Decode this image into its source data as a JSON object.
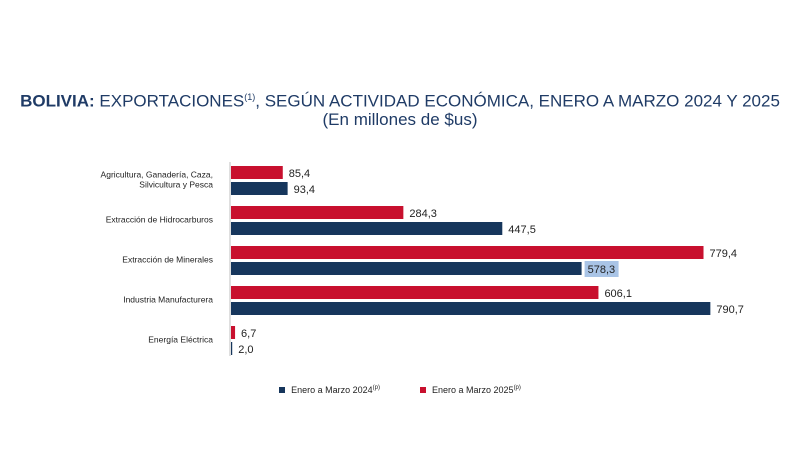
{
  "header": {
    "title_bold": "BOLIVIA:",
    "title_main": " EXPORTACIONES",
    "title_sup": "(1)",
    "title_rest": ", SEGÚN ACTIVIDAD ECONÓMICA, ENERO A MARZO 2024 Y 2025",
    "subtitle": "(En millones de $us)"
  },
  "legend": {
    "s2024_label": "Enero a Marzo 2024",
    "s2024_sup": "(p)",
    "s2025_label": "Enero a Marzo  2025",
    "s2025_sup": "(p)"
  },
  "colors": {
    "s2025": "#c8102e",
    "s2024": "#16365c",
    "highlight": "#a9c4e6"
  },
  "chart_data": {
    "type": "bar",
    "orientation": "horizontal",
    "categories": [
      [
        "Agricultura, Ganadería, Caza,",
        "Silvicultura y Pesca"
      ],
      [
        "Extracción de Hidrocarburos"
      ],
      [
        "Extracción de Minerales"
      ],
      [
        "Industria Manufacturera"
      ],
      [
        "Energía Eléctrica"
      ]
    ],
    "series": [
      {
        "name": "Enero a Marzo  2025(p)",
        "values": [
          85.4,
          284.3,
          779.4,
          606.1,
          6.7
        ],
        "labels": [
          "85,4",
          "284,3",
          "779,4",
          "606,1",
          "6,7"
        ]
      },
      {
        "name": "Enero a Marzo 2024(p)",
        "values": [
          93.4,
          447.5,
          578.3,
          790.7,
          2.0
        ],
        "labels": [
          "93,4",
          "447,5",
          "578,3",
          "790,7",
          "2,0"
        ]
      }
    ],
    "xlim": [
      0,
      800
    ],
    "grid": false,
    "legend_position": "bottom",
    "highlighted_label": "578,3"
  }
}
